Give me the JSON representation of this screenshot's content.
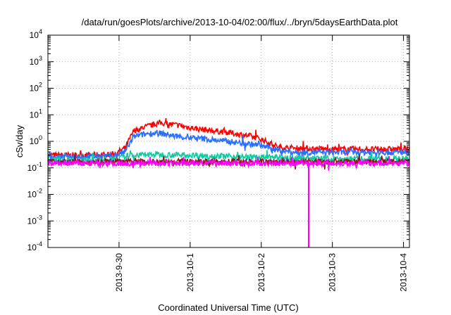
{
  "chart_data": {
    "type": "line",
    "title": "/data/run/goesPlots/archive/2013-10-04/02:00/flux/../bryn/5daysEarthData.plot",
    "xlabel": "Coordinated Universal Time (UTC)",
    "ylabel": "cSv/day",
    "yscale": "log",
    "ylim": [
      0.0001,
      10000
    ],
    "y_ticks": [
      {
        "base": "10",
        "exp": "-4",
        "value": 0.0001
      },
      {
        "base": "10",
        "exp": "-3",
        "value": 0.001
      },
      {
        "base": "10",
        "exp": "-2",
        "value": 0.01
      },
      {
        "base": "10",
        "exp": "-1",
        "value": 0.1
      },
      {
        "base": "10",
        "exp": "0",
        "value": 1
      },
      {
        "base": "10",
        "exp": "1",
        "value": 10
      },
      {
        "base": "10",
        "exp": "2",
        "value": 100
      },
      {
        "base": "10",
        "exp": "3",
        "value": 1000
      },
      {
        "base": "10",
        "exp": "4",
        "value": 10000
      }
    ],
    "xlim": [
      "2013-09-29T00:00",
      "2013-10-04T02:00"
    ],
    "x_ticks": [
      {
        "label": "2013-9-30",
        "value": "2013-09-30T00:00"
      },
      {
        "label": "2013-10-1",
        "value": "2013-10-01T00:00"
      },
      {
        "label": "2013-10-2",
        "value": "2013-10-02T00:00"
      },
      {
        "label": "2013-10-3",
        "value": "2013-10-03T00:00"
      },
      {
        "label": "2013-10-4",
        "value": "2013-10-04T00:00"
      }
    ],
    "grid": true,
    "series": [
      {
        "color": "#ff0000",
        "points": [
          [
            "2013-09-29T00:00",
            0.3
          ],
          [
            "2013-09-29T12:00",
            0.3
          ],
          [
            "2013-09-29T22:00",
            0.32
          ],
          [
            "2013-09-30T02:00",
            0.55
          ],
          [
            "2013-09-30T05:00",
            2.5
          ],
          [
            "2013-09-30T09:00",
            3.5
          ],
          [
            "2013-09-30T14:00",
            5.0
          ],
          [
            "2013-09-30T20:00",
            4.0
          ],
          [
            "2013-10-01T02:00",
            3.0
          ],
          [
            "2013-10-01T12:00",
            2.2
          ],
          [
            "2013-10-01T20:00",
            1.6
          ],
          [
            "2013-10-02T00:00",
            1.2
          ],
          [
            "2013-10-02T06:00",
            0.6
          ],
          [
            "2013-10-02T12:00",
            0.55
          ],
          [
            "2013-10-03T00:00",
            0.5
          ],
          [
            "2013-10-04T02:00",
            0.5
          ]
        ]
      },
      {
        "color": "#2b6fff",
        "points": [
          [
            "2013-09-29T00:00",
            0.25
          ],
          [
            "2013-09-29T12:00",
            0.26
          ],
          [
            "2013-09-29T22:00",
            0.28
          ],
          [
            "2013-09-30T02:00",
            0.4
          ],
          [
            "2013-09-30T05:00",
            1.5
          ],
          [
            "2013-09-30T10:00",
            2.0
          ],
          [
            "2013-09-30T14:00",
            2.0
          ],
          [
            "2013-09-30T20:00",
            1.5
          ],
          [
            "2013-10-01T06:00",
            1.2
          ],
          [
            "2013-10-01T16:00",
            0.9
          ],
          [
            "2013-10-02T00:00",
            0.7
          ],
          [
            "2013-10-02T06:00",
            0.45
          ],
          [
            "2013-10-02T12:00",
            0.38
          ],
          [
            "2013-10-03T00:00",
            0.38
          ],
          [
            "2013-10-04T02:00",
            0.38
          ]
        ]
      },
      {
        "color": "#10c9a0",
        "points": [
          [
            "2013-09-29T00:00",
            0.2
          ],
          [
            "2013-09-29T22:00",
            0.2
          ],
          [
            "2013-09-30T04:00",
            0.3
          ],
          [
            "2013-09-30T12:00",
            0.32
          ],
          [
            "2013-10-01T00:00",
            0.3
          ],
          [
            "2013-10-02T00:00",
            0.25
          ],
          [
            "2013-10-03T00:00",
            0.22
          ],
          [
            "2013-10-04T02:00",
            0.22
          ]
        ]
      },
      {
        "color": "#8a1a1a",
        "points": [
          [
            "2013-09-29T00:00",
            0.17
          ],
          [
            "2013-09-30T00:00",
            0.17
          ],
          [
            "2013-10-01T00:00",
            0.17
          ],
          [
            "2013-10-02T00:00",
            0.17
          ],
          [
            "2013-10-03T00:00",
            0.17
          ],
          [
            "2013-10-04T02:00",
            0.17
          ]
        ]
      },
      {
        "color": "#ff00ff",
        "dip": {
          "x": "2013-10-02T16:00",
          "y": 0.0001
        },
        "points": [
          [
            "2013-09-29T00:00",
            0.15
          ],
          [
            "2013-09-30T00:00",
            0.15
          ],
          [
            "2013-10-01T00:00",
            0.15
          ],
          [
            "2013-10-02T00:00",
            0.15
          ],
          [
            "2013-10-03T00:00",
            0.15
          ],
          [
            "2013-10-04T02:00",
            0.15
          ]
        ]
      }
    ]
  }
}
